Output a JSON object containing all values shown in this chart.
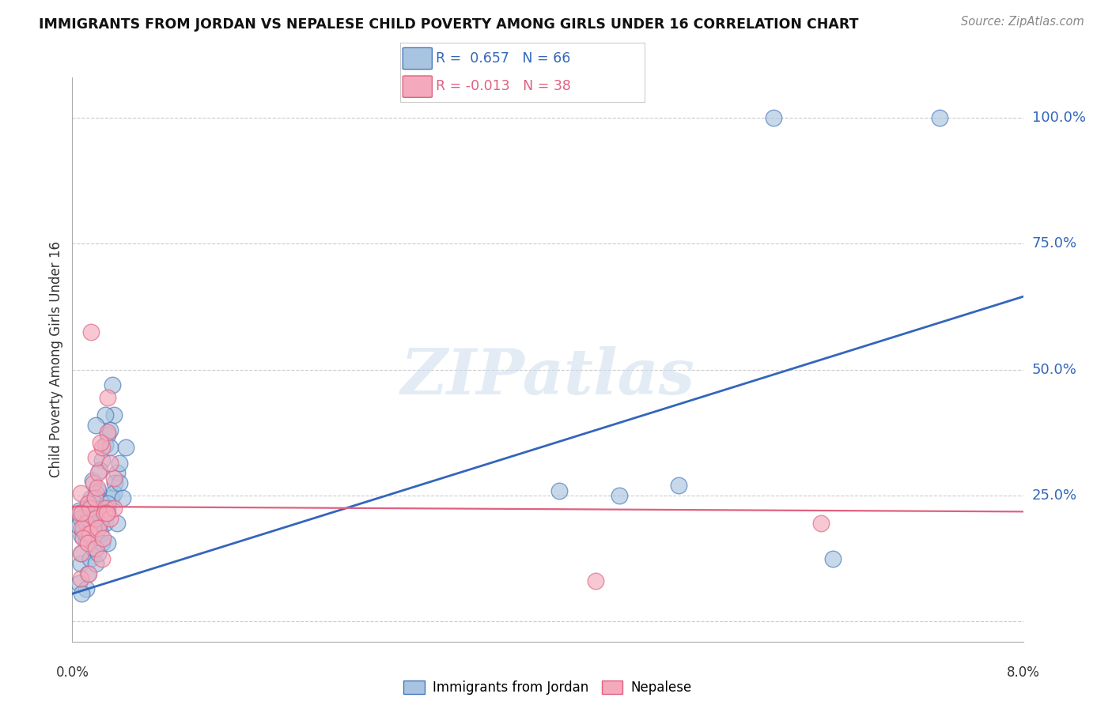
{
  "title": "IMMIGRANTS FROM JORDAN VS NEPALESE CHILD POVERTY AMONG GIRLS UNDER 16 CORRELATION CHART",
  "source": "Source: ZipAtlas.com",
  "ylabel": "Child Poverty Among Girls Under 16",
  "xlim": [
    0.0,
    0.08
  ],
  "ylim": [
    -0.04,
    1.08
  ],
  "yticks": [
    0.0,
    0.25,
    0.5,
    0.75,
    1.0
  ],
  "ytick_labels": [
    "",
    "25.0%",
    "50.0%",
    "75.0%",
    "100.0%"
  ],
  "blue_color": "#A8C4E0",
  "blue_edge": "#4477BB",
  "pink_color": "#F4AABC",
  "pink_edge": "#E06080",
  "line_blue_color": "#3366BB",
  "line_pink_color": "#E06080",
  "legend_r1_label": "R =  0.657   N = 66",
  "legend_r2_label": "R = -0.013   N = 38",
  "watermark_text": "ZIPatlas",
  "jordan_points": [
    [
      0.0005,
      0.19
    ],
    [
      0.0008,
      0.17
    ],
    [
      0.001,
      0.21
    ],
    [
      0.0012,
      0.16
    ],
    [
      0.0015,
      0.22
    ],
    [
      0.0018,
      0.2
    ],
    [
      0.0009,
      0.18
    ],
    [
      0.0006,
      0.22
    ],
    [
      0.0011,
      0.175
    ],
    [
      0.0014,
      0.23
    ],
    [
      0.002,
      0.21
    ],
    [
      0.0017,
      0.28
    ],
    [
      0.0022,
      0.26
    ],
    [
      0.0025,
      0.32
    ],
    [
      0.0023,
      0.3
    ],
    [
      0.002,
      0.255
    ],
    [
      0.0016,
      0.245
    ],
    [
      0.003,
      0.37
    ],
    [
      0.0028,
      0.35
    ],
    [
      0.0035,
      0.41
    ],
    [
      0.0032,
      0.38
    ],
    [
      0.0007,
      0.115
    ],
    [
      0.0013,
      0.095
    ],
    [
      0.0008,
      0.135
    ],
    [
      0.0015,
      0.125
    ],
    [
      0.0018,
      0.145
    ],
    [
      0.002,
      0.115
    ],
    [
      0.0025,
      0.155
    ],
    [
      0.0022,
      0.135
    ],
    [
      0.003,
      0.215
    ],
    [
      0.0028,
      0.195
    ],
    [
      0.0033,
      0.245
    ],
    [
      0.003,
      0.225
    ],
    [
      0.0038,
      0.295
    ],
    [
      0.0036,
      0.275
    ],
    [
      0.0006,
      0.075
    ],
    [
      0.0012,
      0.065
    ],
    [
      0.0008,
      0.055
    ],
    [
      0.0024,
      0.175
    ],
    [
      0.003,
      0.155
    ],
    [
      0.0035,
      0.255
    ],
    [
      0.004,
      0.315
    ],
    [
      0.0019,
      0.235
    ],
    [
      0.0023,
      0.195
    ],
    [
      0.0018,
      0.185
    ],
    [
      0.0025,
      0.225
    ],
    [
      0.0032,
      0.345
    ],
    [
      0.0034,
      0.47
    ],
    [
      0.0028,
      0.41
    ],
    [
      0.002,
      0.39
    ],
    [
      0.0007,
      0.205
    ],
    [
      0.0014,
      0.235
    ],
    [
      0.004,
      0.275
    ],
    [
      0.0045,
      0.345
    ],
    [
      0.0009,
      0.185
    ],
    [
      0.0013,
      0.205
    ],
    [
      0.0019,
      0.215
    ],
    [
      0.003,
      0.235
    ],
    [
      0.0038,
      0.195
    ],
    [
      0.0042,
      0.245
    ],
    [
      0.059,
      1.0
    ],
    [
      0.073,
      1.0
    ],
    [
      0.064,
      0.125
    ],
    [
      0.041,
      0.26
    ],
    [
      0.051,
      0.27
    ],
    [
      0.046,
      0.25
    ]
  ],
  "nepalese_points": [
    [
      0.0006,
      0.215
    ],
    [
      0.0012,
      0.195
    ],
    [
      0.0007,
      0.255
    ],
    [
      0.0014,
      0.175
    ],
    [
      0.0018,
      0.275
    ],
    [
      0.0022,
      0.295
    ],
    [
      0.0013,
      0.235
    ],
    [
      0.0008,
      0.185
    ],
    [
      0.0015,
      0.225
    ],
    [
      0.002,
      0.325
    ],
    [
      0.0025,
      0.345
    ],
    [
      0.0019,
      0.245
    ],
    [
      0.003,
      0.375
    ],
    [
      0.0035,
      0.285
    ],
    [
      0.0032,
      0.315
    ],
    [
      0.0028,
      0.225
    ],
    [
      0.002,
      0.205
    ],
    [
      0.0015,
      0.175
    ],
    [
      0.0009,
      0.165
    ],
    [
      0.0022,
      0.185
    ],
    [
      0.0027,
      0.215
    ],
    [
      0.0007,
      0.135
    ],
    [
      0.0013,
      0.155
    ],
    [
      0.002,
      0.145
    ],
    [
      0.0026,
      0.165
    ],
    [
      0.0032,
      0.205
    ],
    [
      0.0016,
      0.575
    ],
    [
      0.0008,
      0.215
    ],
    [
      0.0024,
      0.355
    ],
    [
      0.003,
      0.445
    ],
    [
      0.0035,
      0.225
    ],
    [
      0.0021,
      0.265
    ],
    [
      0.0029,
      0.215
    ],
    [
      0.0007,
      0.085
    ],
    [
      0.063,
      0.195
    ],
    [
      0.0014,
      0.095
    ],
    [
      0.044,
      0.08
    ],
    [
      0.0025,
      0.125
    ]
  ],
  "blue_line_x": [
    0.0,
    0.08
  ],
  "blue_line_y": [
    0.055,
    0.645
  ],
  "pink_line_x": [
    0.0,
    0.08
  ],
  "pink_line_y": [
    0.228,
    0.218
  ]
}
